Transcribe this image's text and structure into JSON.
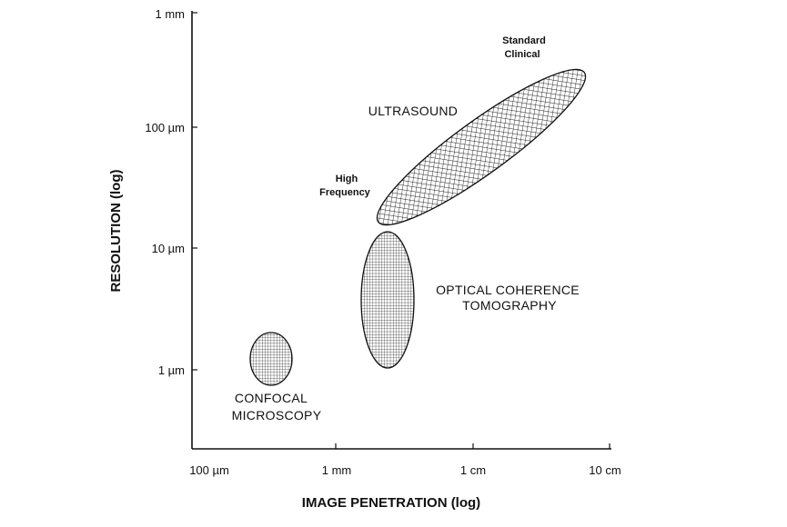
{
  "chart_data": {
    "type": "scatter",
    "xlabel": "IMAGE PENETRATION (log)",
    "ylabel": "RESOLUTION (log)",
    "x_scale": "log",
    "y_scale": "log",
    "x_ticks": [
      "100 µm",
      "1 mm",
      "1 cm",
      "10 cm"
    ],
    "y_ticks": [
      "1 µm",
      "10 µm",
      "100 µm",
      "1 mm"
    ],
    "regions": [
      {
        "name": "CONFOCAL MICROSCOPY",
        "label_lines": [
          "CONFOCAL",
          "MICROSCOPY"
        ],
        "penetration_range": [
          "0.25 mm",
          "0.45 mm"
        ],
        "resolution_range": [
          "0.5 µm",
          "2 µm"
        ]
      },
      {
        "name": "OPTICAL COHERENCE TOMOGRAPHY",
        "label_lines": [
          "OPTICAL COHERENCE",
          "TOMOGRAPHY"
        ],
        "penetration_range": [
          "1.5 mm",
          "3 mm"
        ],
        "resolution_range": [
          "1 µm",
          "15 µm"
        ]
      },
      {
        "name": "ULTRASOUND",
        "label_lines": [
          "ULTRASOUND"
        ],
        "penetration_range": [
          "2.5 mm",
          "7 cm"
        ],
        "resolution_range": [
          "15 µm",
          "300 µm"
        ]
      }
    ],
    "annotations": [
      {
        "lines": [
          "Standard",
          "Clinical"
        ]
      },
      {
        "lines": [
          "High",
          "Frequency"
        ]
      }
    ],
    "grid": false,
    "legend": "none"
  },
  "colors": {
    "axis": "#111111",
    "hatch": "#222222",
    "background": "#ffffff"
  }
}
